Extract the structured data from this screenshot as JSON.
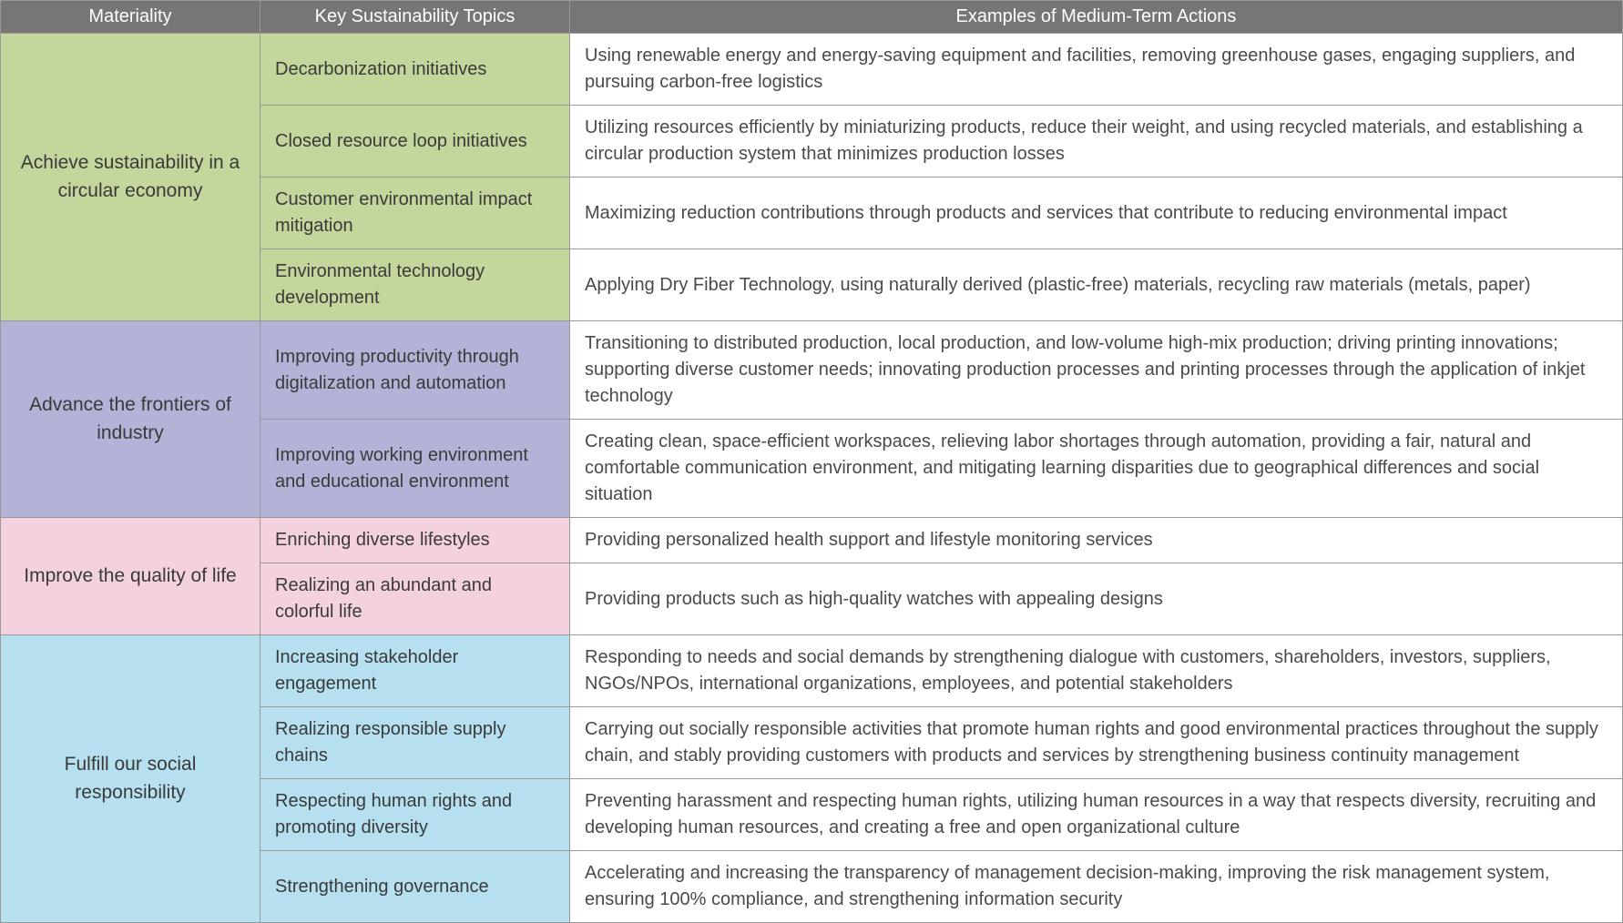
{
  "headers": {
    "col1": "Materiality",
    "col2": "Key Sustainability Topics",
    "col3": "Examples of Medium-Term Actions"
  },
  "colors": {
    "header_bg": "#767577",
    "header_text": "#ffffff",
    "border": "#999999",
    "text_dark": "#3a3a3a",
    "text_body": "#4a4a4a",
    "green": "#c3d69c",
    "purple": "#b2b3d6",
    "pink": "#f4d1df",
    "blue": "#b6dff0",
    "white": "#ffffff"
  },
  "sections": [
    {
      "materiality": "Achieve  sustainability  in a circular economy",
      "color_class": "bg-green",
      "rows": [
        {
          "topic": "Decarbonization initiatives",
          "example": "Using renewable energy and energy-saving equipment and facilities, removing greenhouse gases, engaging suppliers, and pursuing carbon-free logistics"
        },
        {
          "topic": "Closed resource loop initiatives",
          "example": "Utilizing resources efficiently by miniaturizing products, reduce their weight, and using recycled materials, and establishing a circular production system that minimizes production losses"
        },
        {
          "topic": "Customer environmental impact mitigation",
          "example": "Maximizing reduction contributions through products and services that contribute to reducing environmental impact"
        },
        {
          "topic": "Environmental technology development",
          "example": "Applying Dry Fiber Technology, using naturally derived (plastic-free) materials, recycling raw materials (metals, paper)"
        }
      ]
    },
    {
      "materiality": "Advance the frontiers of industry",
      "color_class": "bg-purple",
      "rows": [
        {
          "topic": "Improving productivity through digitalization and automation",
          "example": "Transitioning to distributed production, local production, and low-volume high-mix production; driving printing innovations; supporting diverse customer needs; innovating production processes and printing processes through the application of inkjet technology"
        },
        {
          "topic": "Improving working environment and educational environment",
          "example": "Creating clean, space-efficient workspaces, relieving labor shortages through automation, providing a fair, natural and comfortable communication environment, and mitigating learning disparities due to geographical differences and social situation"
        }
      ]
    },
    {
      "materiality": "Improve the quality of life",
      "color_class": "bg-pink",
      "rows": [
        {
          "topic": "Enriching diverse lifestyles",
          "example": "Providing personalized health support and lifestyle monitoring services"
        },
        {
          "topic": "Realizing an abundant and colorful life",
          "example": "Providing products such as high-quality watches with appealing designs"
        }
      ]
    },
    {
      "materiality": "Fulfill our social responsibility",
      "color_class": "bg-blue",
      "rows": [
        {
          "topic": "Increasing stakeholder engagement",
          "example": "Responding to needs and social demands by strengthening dialogue with customers, shareholders, investors, suppliers, NGOs/NPOs, international organizations, employees, and potential stakeholders"
        },
        {
          "topic": "Realizing responsible supply chains",
          "example": "Carrying out socially responsible activities that promote human rights and good environmental practices throughout the supply chain, and stably providing customers with products and services by strengthening business continuity management"
        },
        {
          "topic": "Respecting human rights and promoting diversity",
          "example": "Preventing harassment and respecting human rights, utilizing human resources in a way that respects diversity, recruiting and developing human resources, and creating a free and open organizational culture"
        },
        {
          "topic": "Strengthening governance",
          "example": "Accelerating and increasing the transparency of management decision-making, improving the risk management system, ensuring 100% compliance, and strengthening information security"
        }
      ]
    }
  ]
}
